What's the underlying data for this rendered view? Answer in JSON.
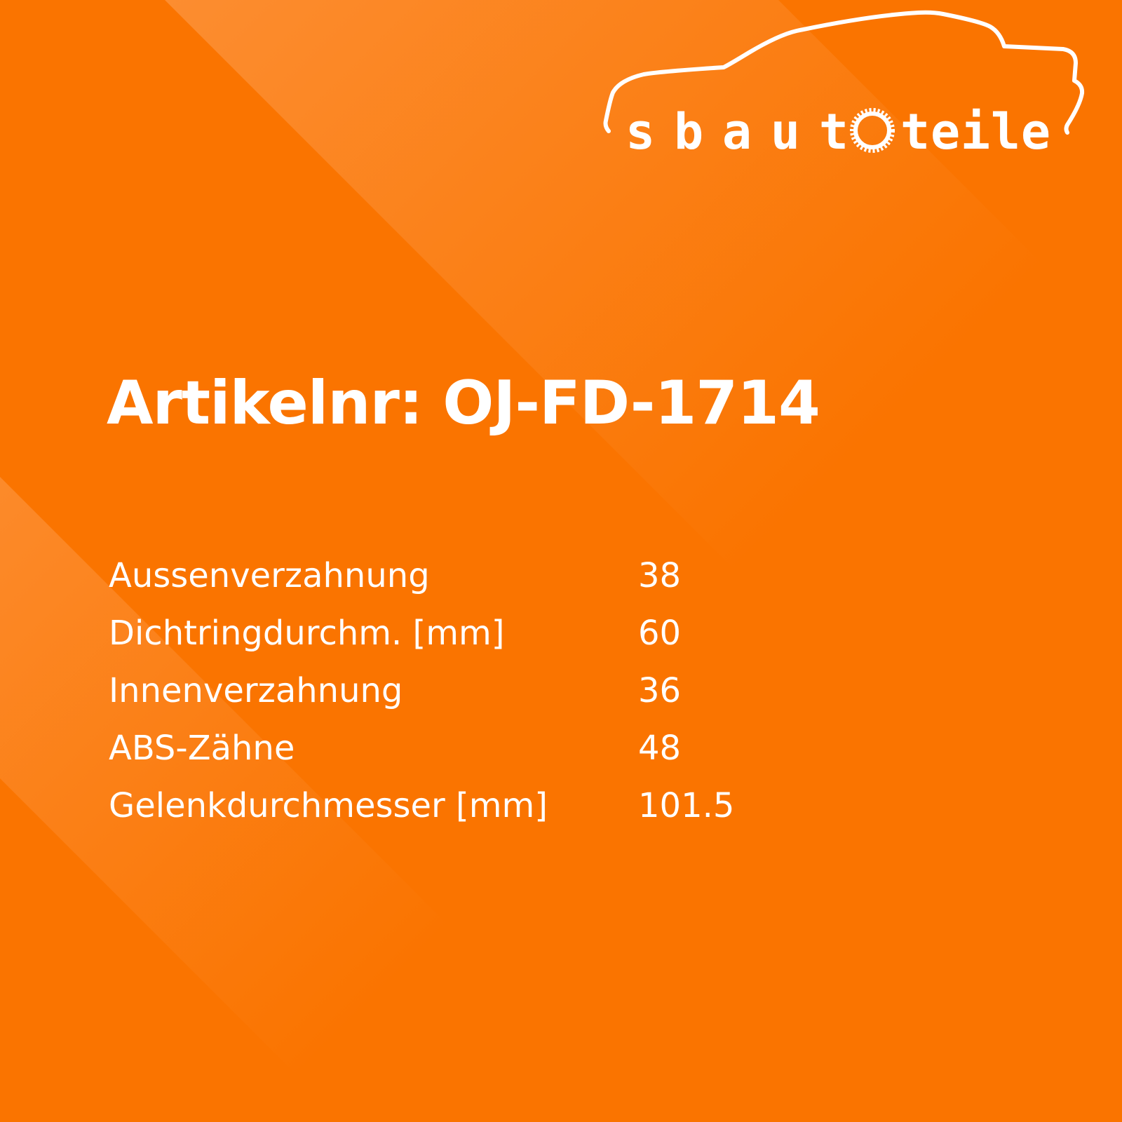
{
  "brand": {
    "logo_text": "sbautoteile",
    "colors": {
      "background": "#FA7400",
      "band": "#FB8A2C",
      "text": "#FFFFFF"
    }
  },
  "title": "Artikelnr: OJ-FD-1714",
  "specs": [
    {
      "label": "Aussenverzahnung",
      "value": "38"
    },
    {
      "label": "Dichtringdurchm. [mm]",
      "value": "60"
    },
    {
      "label": "Innenverzahnung",
      "value": "36"
    },
    {
      "label": "ABS-Zähne",
      "value": "48"
    },
    {
      "label": "Gelenkdurchmesser [mm]",
      "value": "101.5"
    }
  ]
}
